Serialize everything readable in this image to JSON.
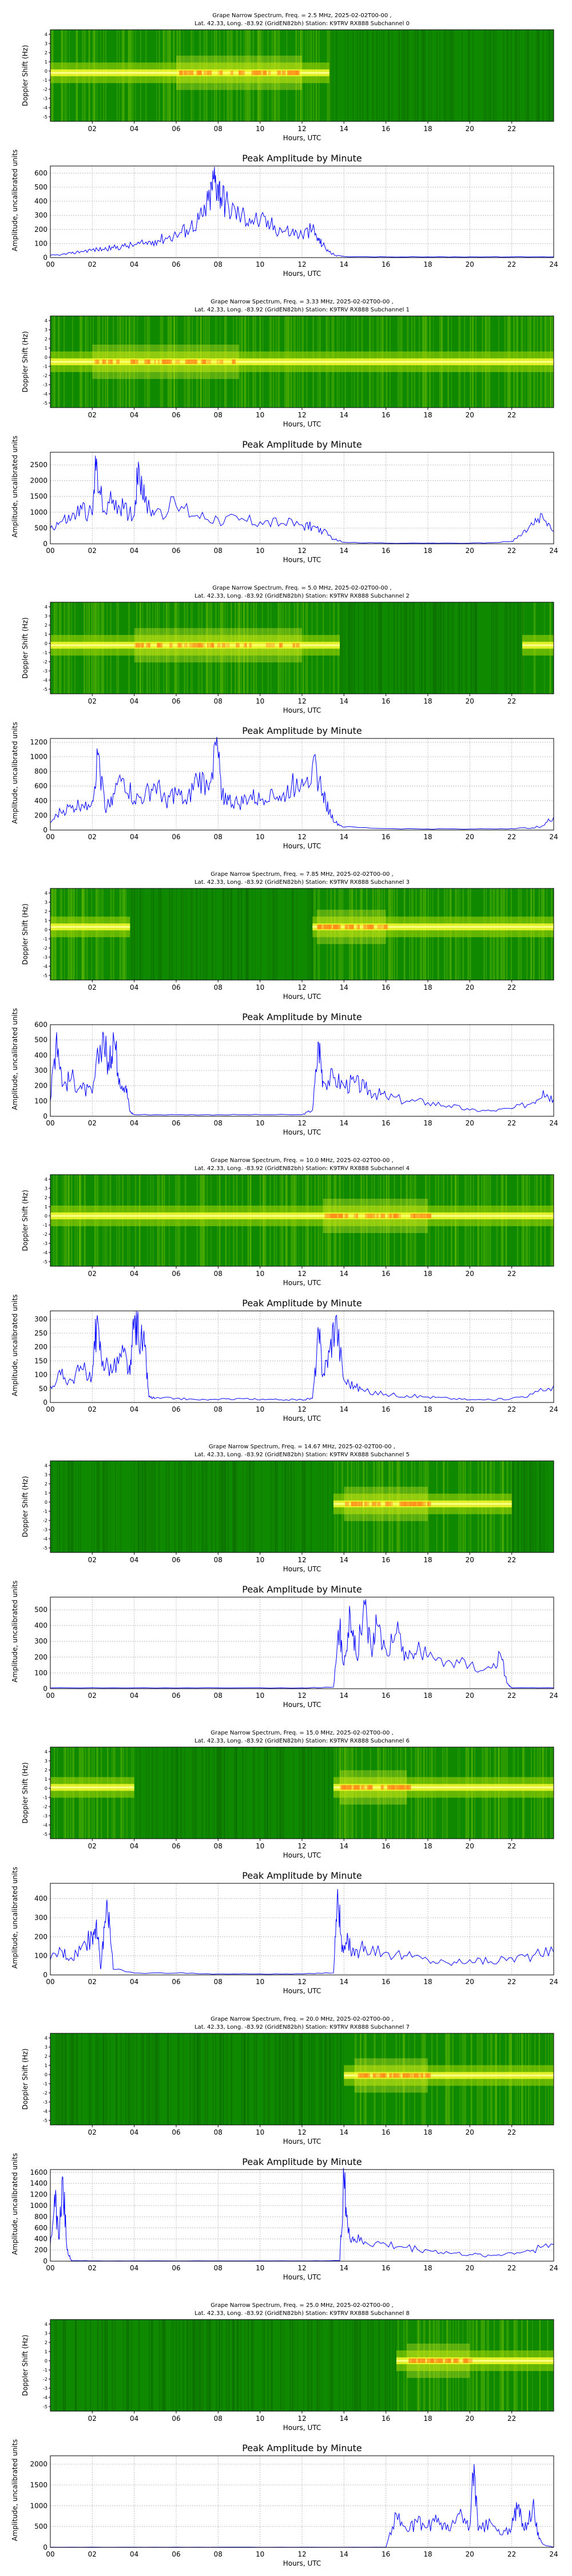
{
  "colors": {
    "spectrogram_background": "#0f8a00",
    "spectrogram_dark": "#0a6a00",
    "carrier_yellow": "#ffff33",
    "carrier_orange": "#ff8c1a",
    "amplitude_line": "#0000ff",
    "grid": "#b0b0b0",
    "axis": "#000000"
  },
  "common": {
    "spectrogram_ylabel": "Doppler Shift (Hz)",
    "spectrogram_yticks": [
      "4",
      "3",
      "2",
      "1",
      "0",
      "-1",
      "-2",
      "-3",
      "-4",
      "-5"
    ],
    "spectrogram_xticks": [
      "02",
      "04",
      "06",
      "08",
      "10",
      "12",
      "14",
      "16",
      "18",
      "20",
      "22"
    ],
    "amplitude_title": "Peak Amplitude by Minute",
    "amplitude_ylabel": "Amplitude, uncalibrated units",
    "amplitude_xticks": [
      "00",
      "02",
      "04",
      "06",
      "08",
      "10",
      "12",
      "14",
      "16",
      "18",
      "20",
      "22",
      "24"
    ],
    "xlabel": "Hours, UTC",
    "location_line": "Lat.  42.33, Long. -83.92 (GridEN82bh) Station: K9TRV RX888 Subchannel"
  },
  "chart_data": [
    {
      "type": "heatmap",
      "title": "Grape Narrow Spectrum, Freq. = 2.5 MHz, 2025-02-02T00-00 ,",
      "subtitle": "Lat.  42.33, Long. -83.92 (GridEN82bh) Station: K9TRV RX888 Subchannel 0",
      "xlabel": "Hours, UTC",
      "ylabel": "Doppler Shift (Hz)",
      "xlim": [
        0,
        24
      ],
      "ylim": [
        -5,
        5
      ],
      "carrier_offset_hz": 0.3,
      "active_hours": [
        [
          0,
          13.3
        ]
      ],
      "peak_hours": [
        [
          6.0,
          12.0
        ]
      ]
    },
    {
      "type": "line",
      "title": "Peak Amplitude by Minute",
      "xlabel": "Hours, UTC",
      "ylabel": "Amplitude, uncalibrated units",
      "xlim": [
        0,
        24
      ],
      "ylim": [
        0,
        650
      ],
      "yticks": [
        0,
        100,
        200,
        300,
        400,
        500,
        600
      ],
      "x": [
        0,
        0.5,
        1,
        1.5,
        2,
        2.5,
        3,
        3.5,
        4,
        4.5,
        5,
        5.5,
        6,
        6.5,
        7,
        7.3,
        7.6,
        7.8,
        8.0,
        8.2,
        8.5,
        9,
        9.5,
        10,
        10.5,
        11,
        11.5,
        12,
        12.5,
        12.8,
        13,
        13.3,
        13.6,
        14,
        16,
        18,
        20,
        22,
        24
      ],
      "y": [
        15,
        20,
        30,
        45,
        55,
        60,
        70,
        80,
        90,
        100,
        120,
        140,
        160,
        200,
        260,
        300,
        420,
        560,
        510,
        430,
        360,
        300,
        280,
        260,
        230,
        200,
        180,
        160,
        200,
        120,
        90,
        40,
        15,
        8,
        5,
        5,
        5,
        5,
        5
      ]
    },
    {
      "type": "heatmap",
      "title": "Grape Narrow Spectrum, Freq. = 3.33 MHz, 2025-02-02T00-00 ,",
      "subtitle": "Lat.  42.33, Long. -83.92 (GridEN82bh) Station: K9TRV RX888 Subchannel 1",
      "xlabel": "Hours, UTC",
      "ylabel": "Doppler Shift (Hz)",
      "xlim": [
        0,
        24
      ],
      "ylim": [
        -5,
        5
      ],
      "carrier_offset_hz": 0.0,
      "active_hours": [
        [
          0,
          24
        ]
      ],
      "peak_hours": [
        [
          2.0,
          9.0
        ]
      ]
    },
    {
      "type": "line",
      "title": "Peak Amplitude by Minute",
      "xlabel": "Hours, UTC",
      "ylabel": "Amplitude, uncalibrated units",
      "xlim": [
        0,
        24
      ],
      "ylim": [
        0,
        2900
      ],
      "yticks": [
        0,
        500,
        1000,
        1500,
        2000,
        2500
      ],
      "x": [
        0,
        0.5,
        1,
        1.5,
        2,
        2.2,
        2.5,
        3,
        3.5,
        4,
        4.2,
        4.5,
        5,
        6,
        7,
        8,
        9,
        10,
        11,
        12,
        12.5,
        13,
        13.5,
        14,
        16,
        18,
        20,
        21,
        22,
        22.5,
        23,
        23.5,
        24
      ],
      "y": [
        500,
        700,
        800,
        1100,
        900,
        2700,
        1000,
        1400,
        1100,
        900,
        2600,
        1300,
        1000,
        1200,
        900,
        800,
        750,
        700,
        650,
        600,
        550,
        400,
        150,
        50,
        20,
        20,
        20,
        30,
        80,
        300,
        600,
        800,
        400
      ]
    },
    {
      "type": "heatmap",
      "title": "Grape Narrow Spectrum, Freq. = 5.0 MHz, 2025-02-02T00-00 ,",
      "subtitle": "Lat.  42.33, Long. -83.92 (GridEN82bh) Station: K9TRV RX888 Subchannel 2",
      "xlabel": "Hours, UTC",
      "ylabel": "Doppler Shift (Hz)",
      "xlim": [
        0,
        24
      ],
      "ylim": [
        -5,
        5
      ],
      "carrier_offset_hz": 0.3,
      "active_hours": [
        [
          0,
          13.8
        ],
        [
          22.5,
          24
        ]
      ],
      "peak_hours": [
        [
          4.0,
          12.0
        ]
      ]
    },
    {
      "type": "line",
      "title": "Peak Amplitude by Minute",
      "xlabel": "Hours, UTC",
      "ylabel": "Amplitude, uncalibrated units",
      "xlim": [
        0,
        24
      ],
      "ylim": [
        0,
        1250
      ],
      "yticks": [
        0,
        200,
        400,
        600,
        800,
        1000,
        1200
      ],
      "x": [
        0,
        0.5,
        1,
        1.5,
        2,
        2.3,
        2.6,
        3,
        3.5,
        4,
        4.5,
        5,
        5.5,
        6,
        6.5,
        7,
        7.5,
        7.9,
        8.2,
        8.5,
        9,
        9.5,
        10,
        10.5,
        11,
        11.5,
        12,
        12.5,
        13,
        13.3,
        13.6,
        14,
        16,
        18,
        20,
        22,
        23,
        23.5,
        24
      ],
      "y": [
        100,
        250,
        300,
        350,
        400,
        1050,
        300,
        500,
        700,
        400,
        450,
        600,
        400,
        500,
        350,
        700,
        600,
        1150,
        500,
        400,
        350,
        450,
        400,
        550,
        400,
        600,
        700,
        900,
        500,
        250,
        100,
        40,
        20,
        15,
        15,
        20,
        30,
        60,
        180
      ]
    },
    {
      "type": "heatmap",
      "title": "Grape Narrow Spectrum, Freq. = 7.85 MHz, 2025-02-02T00-00 ,",
      "subtitle": "Lat.  42.33, Long. -83.92 (GridEN82bh) Station: K9TRV RX888 Subchannel 3",
      "xlabel": "Hours, UTC",
      "ylabel": "Doppler Shift (Hz)",
      "xlim": [
        0,
        24
      ],
      "ylim": [
        -5,
        5
      ],
      "carrier_offset_hz": 0.8,
      "active_hours": [
        [
          0,
          3.8
        ],
        [
          12.5,
          24
        ]
      ],
      "peak_hours": [
        [
          12.7,
          16.0
        ]
      ]
    },
    {
      "type": "line",
      "title": "Peak Amplitude by Minute",
      "xlabel": "Hours, UTC",
      "ylabel": "Amplitude, uncalibrated units",
      "xlim": [
        0,
        24
      ],
      "ylim": [
        0,
        600
      ],
      "yticks": [
        0,
        100,
        200,
        300,
        400,
        500,
        600
      ],
      "x": [
        0,
        0.3,
        0.6,
        1,
        1.5,
        2,
        2.5,
        2.8,
        3,
        3.3,
        3.6,
        3.8,
        4,
        6,
        8,
        10,
        12,
        12.5,
        12.8,
        13,
        13.5,
        14,
        14.5,
        15,
        15.5,
        16,
        17,
        18,
        19,
        20,
        21,
        22,
        23,
        23.5,
        24
      ],
      "y": [
        100,
        550,
        200,
        250,
        180,
        150,
        550,
        300,
        550,
        250,
        200,
        30,
        10,
        10,
        10,
        10,
        10,
        40,
        480,
        230,
        250,
        200,
        220,
        180,
        150,
        130,
        100,
        90,
        70,
        40,
        35,
        50,
        90,
        170,
        110
      ]
    },
    {
      "type": "heatmap",
      "title": "Grape Narrow Spectrum, Freq. = 10.0 MHz, 2025-02-02T00-00 ,",
      "subtitle": "Lat.  42.33, Long. -83.92 (GridEN82bh) Station: K9TRV RX888 Subchannel 4",
      "xlabel": "Hours, UTC",
      "ylabel": "Doppler Shift (Hz)",
      "xlim": [
        0,
        24
      ],
      "ylim": [
        -5,
        5
      ],
      "carrier_offset_hz": 0.5,
      "active_hours": [
        [
          0,
          24
        ]
      ],
      "peak_hours": [
        [
          13.0,
          18.0
        ]
      ]
    },
    {
      "type": "line",
      "title": "Peak Amplitude by Minute",
      "xlabel": "Hours, UTC",
      "ylabel": "Amplitude, uncalibrated units",
      "xlim": [
        0,
        24
      ],
      "ylim": [
        0,
        330
      ],
      "yticks": [
        0,
        50,
        100,
        150,
        200,
        250,
        300
      ],
      "x": [
        0,
        0.5,
        1,
        1.5,
        2,
        2.2,
        2.5,
        3,
        3.5,
        3.8,
        4,
        4.2,
        4.5,
        4.7,
        5,
        6,
        7,
        8,
        9,
        10,
        11,
        12,
        12.5,
        12.8,
        13,
        13.3,
        13.6,
        14,
        14.5,
        15,
        16,
        17,
        18,
        19,
        20,
        21,
        22,
        23,
        24
      ],
      "y": [
        60,
        100,
        80,
        120,
        100,
        280,
        150,
        120,
        180,
        100,
        290,
        250,
        200,
        20,
        15,
        15,
        10,
        10,
        15,
        10,
        10,
        10,
        15,
        250,
        100,
        180,
        310,
        80,
        60,
        40,
        30,
        25,
        20,
        15,
        10,
        10,
        15,
        30,
        60
      ]
    },
    {
      "type": "heatmap",
      "title": "Grape Narrow Spectrum, Freq. = 14.67 MHz, 2025-02-02T00-00 ,",
      "subtitle": "Lat.  42.33, Long. -83.92 (GridEN82bh) Station: K9TRV RX888 Subchannel 5",
      "xlabel": "Hours, UTC",
      "ylabel": "Doppler Shift (Hz)",
      "xlim": [
        0,
        24
      ],
      "ylim": [
        -5,
        5
      ],
      "carrier_offset_hz": 0.3,
      "active_hours": [
        [
          13.5,
          22.0
        ]
      ],
      "peak_hours": [
        [
          14.0,
          18.0
        ]
      ]
    },
    {
      "type": "line",
      "title": "Peak Amplitude by Minute",
      "xlabel": "Hours, UTC",
      "ylabel": "Amplitude, uncalibrated units",
      "xlim": [
        0,
        24
      ],
      "ylim": [
        0,
        580
      ],
      "yticks": [
        0,
        100,
        200,
        300,
        400,
        500
      ],
      "x": [
        0,
        4,
        8,
        12,
        13.5,
        13.8,
        14,
        14.3,
        14.6,
        15,
        15.3,
        15.6,
        16,
        16.5,
        17,
        17.5,
        18,
        19,
        20,
        21,
        21.5,
        21.8,
        22,
        24
      ],
      "y": [
        5,
        5,
        5,
        5,
        10,
        380,
        150,
        470,
        200,
        530,
        250,
        400,
        250,
        350,
        200,
        250,
        200,
        180,
        150,
        130,
        200,
        30,
        5,
        5
      ]
    },
    {
      "type": "heatmap",
      "title": "Grape Narrow Spectrum, Freq. = 15.0 MHz, 2025-02-02T00-00 ,",
      "subtitle": "Lat.  42.33, Long. -83.92 (GridEN82bh) Station: K9TRV RX888 Subchannel 6",
      "xlabel": "Hours, UTC",
      "ylabel": "Doppler Shift (Hz)",
      "xlim": [
        0,
        24
      ],
      "ylim": [
        -5,
        5
      ],
      "carrier_offset_hz": 0.6,
      "active_hours": [
        [
          0,
          4.0
        ],
        [
          13.5,
          24
        ]
      ],
      "peak_hours": [
        [
          13.8,
          17.0
        ]
      ]
    },
    {
      "type": "line",
      "title": "Peak Amplitude by Minute",
      "xlabel": "Hours, UTC",
      "ylabel": "Amplitude, uncalibrated units",
      "xlim": [
        0,
        24
      ],
      "ylim": [
        0,
        480
      ],
      "yticks": [
        0,
        100,
        200,
        300,
        400
      ],
      "x": [
        0,
        0.5,
        1,
        1.5,
        2,
        2.2,
        2.4,
        2.6,
        2.8,
        3,
        4,
        6,
        8,
        10,
        12,
        13.5,
        13.7,
        13.9,
        14.2,
        14.5,
        15,
        16,
        17,
        18,
        19,
        20,
        21,
        22,
        23,
        24
      ],
      "y": [
        80,
        130,
        90,
        150,
        200,
        290,
        30,
        280,
        330,
        30,
        10,
        10,
        5,
        5,
        5,
        10,
        450,
        120,
        180,
        100,
        150,
        120,
        100,
        80,
        60,
        80,
        70,
        90,
        100,
        120
      ]
    },
    {
      "type": "heatmap",
      "title": "Grape Narrow Spectrum, Freq. = 20.0 MHz, 2025-02-02T00-00 ,",
      "subtitle": "Lat.  42.33, Long. -83.92 (GridEN82bh) Station: K9TRV RX888 Subchannel 7",
      "xlabel": "Hours, UTC",
      "ylabel": "Doppler Shift (Hz)",
      "xlim": [
        0,
        24
      ],
      "ylim": [
        -5,
        5
      ],
      "carrier_offset_hz": 0.4,
      "active_hours": [
        [
          14.0,
          24
        ]
      ],
      "peak_hours": [
        [
          14.5,
          18.0
        ]
      ]
    },
    {
      "type": "line",
      "title": "Peak Amplitude by Minute",
      "xlabel": "Hours, UTC",
      "ylabel": "Amplitude, uncalibrated units",
      "xlim": [
        0,
        24
      ],
      "ylim": [
        0,
        1650
      ],
      "yticks": [
        0,
        200,
        400,
        600,
        800,
        1000,
        1200,
        1400,
        1600
      ],
      "x": [
        0,
        0.2,
        0.4,
        0.6,
        0.8,
        1,
        2,
        4,
        8,
        12,
        13.8,
        14,
        14.2,
        14.5,
        15,
        16,
        17,
        18,
        19,
        20,
        21,
        22,
        23,
        24
      ],
      "y": [
        300,
        1200,
        400,
        1500,
        200,
        10,
        5,
        5,
        5,
        5,
        10,
        1500,
        500,
        400,
        350,
        300,
        250,
        200,
        150,
        120,
        100,
        150,
        200,
        300
      ]
    },
    {
      "type": "heatmap",
      "title": "Grape Narrow Spectrum, Freq. = 25.0 MHz, 2025-02-02T00-00 ,",
      "subtitle": "Lat.  42.33, Long. -83.92 (GridEN82bh) Station: K9TRV RX888 Subchannel 8",
      "xlabel": "Hours, UTC",
      "ylabel": "Doppler Shift (Hz)",
      "xlim": [
        0,
        24
      ],
      "ylim": [
        -5,
        5
      ],
      "carrier_offset_hz": 0.5,
      "active_hours": [
        [
          16.5,
          24
        ]
      ],
      "peak_hours": [
        [
          17.0,
          20.0
        ]
      ]
    },
    {
      "type": "line",
      "title": "Peak Amplitude by Minute",
      "xlabel": "Hours, UTC",
      "ylabel": "Amplitude, uncalibrated units",
      "xlim": [
        0,
        24
      ],
      "ylim": [
        0,
        2200
      ],
      "yticks": [
        0,
        500,
        1000,
        1500,
        2000
      ],
      "x": [
        0,
        4,
        8,
        12,
        16,
        16.5,
        17,
        17.5,
        18,
        18.5,
        19,
        19.5,
        20,
        20.2,
        20.4,
        21,
        21.5,
        22,
        22.3,
        22.6,
        23,
        23.3,
        23.6,
        24
      ],
      "y": [
        5,
        5,
        5,
        5,
        5,
        800,
        400,
        600,
        500,
        700,
        400,
        800,
        500,
        2000,
        400,
        600,
        300,
        500,
        1000,
        400,
        1000,
        200,
        50,
        5
      ]
    }
  ]
}
